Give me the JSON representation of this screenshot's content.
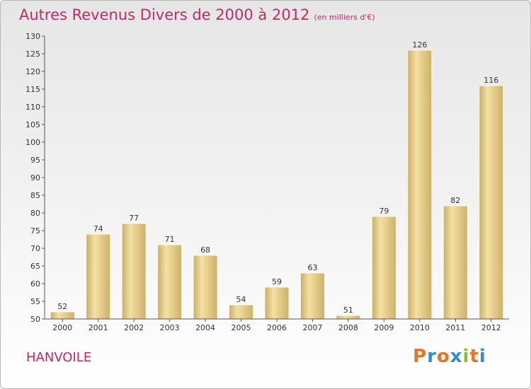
{
  "header": {
    "title": "Autres Revenus Divers de 2000 à 2012",
    "unit": "(en milliers d'€)"
  },
  "place": "HANVOILE",
  "logo": {
    "letters": [
      "P",
      "r",
      "o",
      "x",
      "i",
      "t",
      "i"
    ],
    "colors": [
      "#e4762a",
      "#2f8fd0",
      "#e4762a",
      "#2f8fd0",
      "#8abf2a",
      "#e4762a",
      "#2f8fd0"
    ]
  },
  "colors": {
    "accent": "#c0296b",
    "bar_light": "#f3dd9a",
    "bar_dark": "#cdb06a"
  },
  "chart_data": {
    "type": "bar",
    "categories": [
      "2000",
      "2001",
      "2002",
      "2003",
      "2004",
      "2005",
      "2006",
      "2007",
      "2008",
      "2009",
      "2010",
      "2011",
      "2012"
    ],
    "values": [
      52,
      74,
      77,
      71,
      68,
      54,
      59,
      63,
      51,
      79,
      126,
      82,
      116
    ],
    "title": "Autres Revenus Divers de 2000 à 2012",
    "subtitle": "(en milliers d'€)",
    "ylim": [
      50,
      130
    ],
    "yticks": [
      50,
      55,
      60,
      65,
      70,
      75,
      80,
      85,
      90,
      95,
      100,
      105,
      110,
      115,
      120,
      125,
      130
    ],
    "grid": false,
    "legend": "none"
  }
}
